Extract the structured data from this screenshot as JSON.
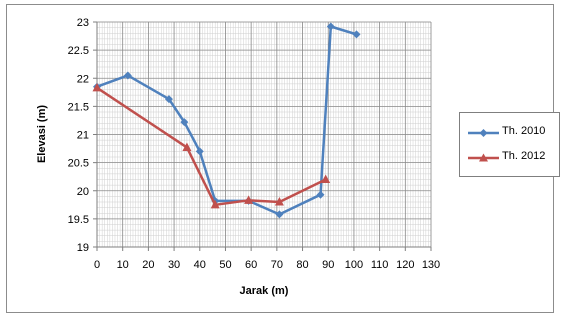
{
  "chart_data": {
    "type": "line",
    "title": "",
    "xlabel": "Jarak (m)",
    "ylabel": "Elevasi (m)",
    "xlim": [
      0,
      130
    ],
    "ylim": [
      19,
      23
    ],
    "x_ticks": [
      0,
      10,
      20,
      30,
      40,
      50,
      60,
      70,
      80,
      90,
      100,
      110,
      120,
      130
    ],
    "y_ticks": [
      19,
      19.5,
      20,
      20.5,
      21,
      21.5,
      22,
      22.5,
      23
    ],
    "x_tick_labels": [
      "0",
      "10",
      "20",
      "30",
      "40",
      "50",
      "60",
      "70",
      "80",
      "90",
      "100",
      "110",
      "120",
      "130"
    ],
    "y_tick_labels": [
      "19",
      "19.5",
      "20",
      "20.5",
      "21",
      "21.5",
      "22",
      "22.5",
      "23"
    ],
    "grid": "on",
    "legend_position": "right",
    "series": [
      {
        "name": "Th. 2010",
        "color": "#4f81bd",
        "marker": "diamond",
        "x": [
          0,
          12,
          28,
          34,
          40,
          46,
          59,
          71,
          87,
          91,
          101
        ],
        "y": [
          21.85,
          22.05,
          21.63,
          21.22,
          20.7,
          19.82,
          19.82,
          19.58,
          19.93,
          22.92,
          22.78
        ]
      },
      {
        "name": "Th. 2012",
        "color": "#c0504d",
        "marker": "triangle",
        "x": [
          0,
          35,
          46,
          59,
          71,
          89
        ],
        "y": [
          21.83,
          20.77,
          19.75,
          19.83,
          19.8,
          20.2
        ]
      }
    ]
  }
}
